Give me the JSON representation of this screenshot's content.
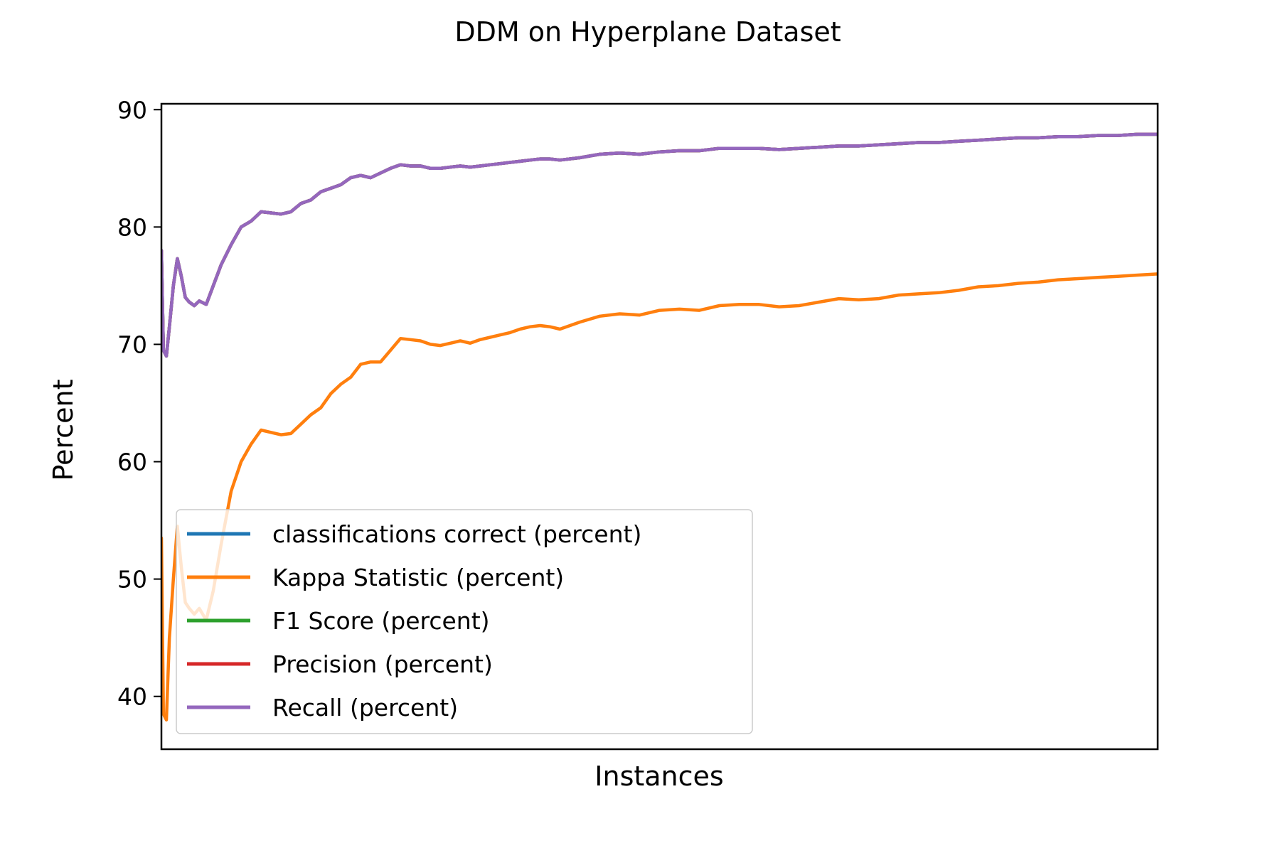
{
  "chart_data": {
    "type": "line",
    "title": "DDM on Hyperplane Dataset",
    "xlabel": "Instances",
    "ylabel": "Percent",
    "xlim": [
      0,
      1000
    ],
    "ylim": [
      35.5,
      90.5
    ],
    "yticks": [
      40,
      50,
      60,
      70,
      80,
      90
    ],
    "xticks": [],
    "grid": false,
    "legend_position": "lower-left",
    "series": [
      {
        "name": "classifications correct (percent)",
        "color": "#1f77b4",
        "x": [
          0,
          2,
          5,
          8,
          12,
          16,
          20,
          24,
          28,
          33,
          38,
          45,
          52,
          60,
          70,
          80,
          90,
          100,
          110,
          120,
          130,
          140,
          150,
          160,
          170,
          180,
          190,
          200,
          210,
          220,
          230,
          240,
          250,
          260,
          270,
          280,
          290,
          300,
          310,
          320,
          330,
          340,
          350,
          360,
          370,
          380,
          390,
          400,
          420,
          440,
          460,
          480,
          500,
          520,
          540,
          560,
          580,
          600,
          620,
          640,
          660,
          680,
          700,
          720,
          740,
          760,
          780,
          800,
          820,
          840,
          860,
          880,
          900,
          920,
          940,
          960,
          980,
          1000
        ],
        "y": [
          78,
          69.5,
          69,
          71.5,
          75,
          77.3,
          75.8,
          74,
          73.6,
          73.3,
          73.7,
          73.4,
          75,
          76.8,
          78.5,
          80,
          80.5,
          81.3,
          81.2,
          81.1,
          81.3,
          82,
          82.3,
          83,
          83.3,
          83.6,
          84.2,
          84.4,
          84.2,
          84.6,
          85,
          85.3,
          85.2,
          85.2,
          85,
          85,
          85.1,
          85.2,
          85.1,
          85.2,
          85.3,
          85.4,
          85.5,
          85.6,
          85.7,
          85.8,
          85.8,
          85.7,
          85.9,
          86.2,
          86.3,
          86.2,
          86.4,
          86.5,
          86.5,
          86.7,
          86.7,
          86.7,
          86.6,
          86.7,
          86.8,
          86.9,
          86.9,
          87,
          87.1,
          87.2,
          87.2,
          87.3,
          87.4,
          87.5,
          87.6,
          87.6,
          87.7,
          87.7,
          87.8,
          87.8,
          87.9,
          87.9
        ]
      },
      {
        "name": "Kappa Statistic (percent)",
        "color": "#ff7f0e",
        "x": [
          0,
          2,
          5,
          8,
          12,
          16,
          20,
          24,
          28,
          33,
          38,
          45,
          52,
          60,
          70,
          80,
          90,
          100,
          110,
          120,
          130,
          140,
          150,
          160,
          170,
          180,
          190,
          200,
          210,
          220,
          230,
          240,
          250,
          260,
          270,
          280,
          290,
          300,
          310,
          320,
          330,
          340,
          350,
          360,
          370,
          380,
          390,
          400,
          420,
          440,
          460,
          480,
          500,
          520,
          540,
          560,
          580,
          600,
          620,
          640,
          660,
          680,
          700,
          720,
          740,
          760,
          780,
          800,
          820,
          840,
          860,
          880,
          900,
          920,
          940,
          960,
          980,
          1000
        ],
        "y": [
          53.5,
          38.5,
          38,
          45,
          50,
          54.5,
          51,
          48,
          47.5,
          47,
          47.5,
          46.5,
          49,
          53,
          57.5,
          60,
          61.5,
          62.7,
          62.5,
          62.3,
          62.4,
          63.2,
          64,
          64.6,
          65.8,
          66.6,
          67.2,
          68.3,
          68.5,
          68.5,
          69.5,
          70.5,
          70.4,
          70.3,
          70,
          69.9,
          70.1,
          70.3,
          70.1,
          70.4,
          70.6,
          70.8,
          71,
          71.3,
          71.5,
          71.6,
          71.5,
          71.3,
          71.9,
          72.4,
          72.6,
          72.5,
          72.9,
          73,
          72.9,
          73.3,
          73.4,
          73.4,
          73.2,
          73.3,
          73.6,
          73.9,
          73.8,
          73.9,
          74.2,
          74.3,
          74.4,
          74.6,
          74.9,
          75,
          75.2,
          75.3,
          75.5,
          75.6,
          75.7,
          75.8,
          75.9,
          76
        ]
      },
      {
        "name": "F1 Score (percent)",
        "color": "#2ca02c",
        "x": [
          0,
          2,
          5,
          8,
          12,
          16,
          20,
          24,
          28,
          33,
          38,
          45,
          52,
          60,
          70,
          80,
          90,
          100,
          110,
          120,
          130,
          140,
          150,
          160,
          170,
          180,
          190,
          200,
          210,
          220,
          230,
          240,
          250,
          260,
          270,
          280,
          290,
          300,
          310,
          320,
          330,
          340,
          350,
          360,
          370,
          380,
          390,
          400,
          420,
          440,
          460,
          480,
          500,
          520,
          540,
          560,
          580,
          600,
          620,
          640,
          660,
          680,
          700,
          720,
          740,
          760,
          780,
          800,
          820,
          840,
          860,
          880,
          900,
          920,
          940,
          960,
          980,
          1000
        ],
        "y": [
          78,
          69.5,
          69,
          71.5,
          75,
          77.3,
          75.8,
          74,
          73.6,
          73.3,
          73.7,
          73.4,
          75,
          76.8,
          78.5,
          80,
          80.5,
          81.3,
          81.2,
          81.1,
          81.3,
          82,
          82.3,
          83,
          83.3,
          83.6,
          84.2,
          84.4,
          84.2,
          84.6,
          85,
          85.3,
          85.2,
          85.2,
          85,
          85,
          85.1,
          85.2,
          85.1,
          85.2,
          85.3,
          85.4,
          85.5,
          85.6,
          85.7,
          85.8,
          85.8,
          85.7,
          85.9,
          86.2,
          86.3,
          86.2,
          86.4,
          86.5,
          86.5,
          86.7,
          86.7,
          86.7,
          86.6,
          86.7,
          86.8,
          86.9,
          86.9,
          87,
          87.1,
          87.2,
          87.2,
          87.3,
          87.4,
          87.5,
          87.6,
          87.6,
          87.7,
          87.7,
          87.8,
          87.8,
          87.9,
          87.9
        ]
      },
      {
        "name": "Precision (percent)",
        "color": "#d62728",
        "x": [
          0,
          2,
          5,
          8,
          12,
          16,
          20,
          24,
          28,
          33,
          38,
          45,
          52,
          60,
          70,
          80,
          90,
          100,
          110,
          120,
          130,
          140,
          150,
          160,
          170,
          180,
          190,
          200,
          210,
          220,
          230,
          240,
          250,
          260,
          270,
          280,
          290,
          300,
          310,
          320,
          330,
          340,
          350,
          360,
          370,
          380,
          390,
          400,
          420,
          440,
          460,
          480,
          500,
          520,
          540,
          560,
          580,
          600,
          620,
          640,
          660,
          680,
          700,
          720,
          740,
          760,
          780,
          800,
          820,
          840,
          860,
          880,
          900,
          920,
          940,
          960,
          980,
          1000
        ],
        "y": [
          78,
          69.5,
          69,
          71.5,
          75,
          77.3,
          75.8,
          74,
          73.6,
          73.3,
          73.7,
          73.4,
          75,
          76.8,
          78.5,
          80,
          80.5,
          81.3,
          81.2,
          81.1,
          81.3,
          82,
          82.3,
          83,
          83.3,
          83.6,
          84.2,
          84.4,
          84.2,
          84.6,
          85,
          85.3,
          85.2,
          85.2,
          85,
          85,
          85.1,
          85.2,
          85.1,
          85.2,
          85.3,
          85.4,
          85.5,
          85.6,
          85.7,
          85.8,
          85.8,
          85.7,
          85.9,
          86.2,
          86.3,
          86.2,
          86.4,
          86.5,
          86.5,
          86.7,
          86.7,
          86.7,
          86.6,
          86.7,
          86.8,
          86.9,
          86.9,
          87,
          87.1,
          87.2,
          87.2,
          87.3,
          87.4,
          87.5,
          87.6,
          87.6,
          87.7,
          87.7,
          87.8,
          87.8,
          87.9,
          87.9
        ]
      },
      {
        "name": "Recall (percent)",
        "color": "#9467bd",
        "x": [
          0,
          2,
          5,
          8,
          12,
          16,
          20,
          24,
          28,
          33,
          38,
          45,
          52,
          60,
          70,
          80,
          90,
          100,
          110,
          120,
          130,
          140,
          150,
          160,
          170,
          180,
          190,
          200,
          210,
          220,
          230,
          240,
          250,
          260,
          270,
          280,
          290,
          300,
          310,
          320,
          330,
          340,
          350,
          360,
          370,
          380,
          390,
          400,
          420,
          440,
          460,
          480,
          500,
          520,
          540,
          560,
          580,
          600,
          620,
          640,
          660,
          680,
          700,
          720,
          740,
          760,
          780,
          800,
          820,
          840,
          860,
          880,
          900,
          920,
          940,
          960,
          980,
          1000
        ],
        "y": [
          78,
          69.5,
          69,
          71.5,
          75,
          77.3,
          75.8,
          74,
          73.6,
          73.3,
          73.7,
          73.4,
          75,
          76.8,
          78.5,
          80,
          80.5,
          81.3,
          81.2,
          81.1,
          81.3,
          82,
          82.3,
          83,
          83.3,
          83.6,
          84.2,
          84.4,
          84.2,
          84.6,
          85,
          85.3,
          85.2,
          85.2,
          85,
          85,
          85.1,
          85.2,
          85.1,
          85.2,
          85.3,
          85.4,
          85.5,
          85.6,
          85.7,
          85.8,
          85.8,
          85.7,
          85.9,
          86.2,
          86.3,
          86.2,
          86.4,
          86.5,
          86.5,
          86.7,
          86.7,
          86.7,
          86.6,
          86.7,
          86.8,
          86.9,
          86.9,
          87,
          87.1,
          87.2,
          87.2,
          87.3,
          87.4,
          87.5,
          87.6,
          87.6,
          87.7,
          87.7,
          87.8,
          87.8,
          87.9,
          87.9
        ]
      }
    ]
  }
}
